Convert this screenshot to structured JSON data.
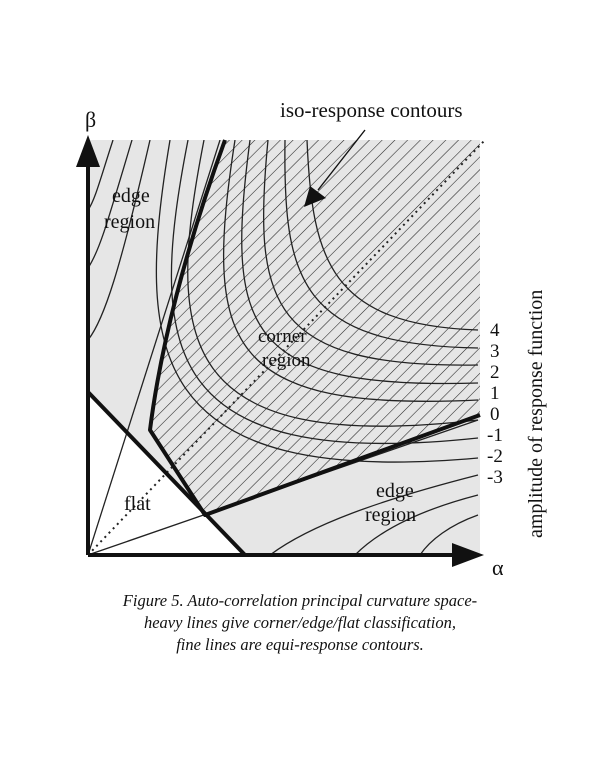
{
  "diagram": {
    "axis_x_label": "α",
    "axis_y_label": "β",
    "annotation": "iso-response contours",
    "side_label": "amplitude of response function",
    "region_labels": {
      "edge_top": [
        "edge",
        "region"
      ],
      "corner": [
        "corner",
        "region"
      ],
      "flat": "flat",
      "edge_right": [
        "edge",
        "region"
      ]
    },
    "contour_levels": [
      "4",
      "3",
      "2",
      "1",
      "0",
      "-1",
      "-2",
      "-3"
    ]
  },
  "caption": {
    "line1": "Figure 5.  Auto-correlation principal curvature space-",
    "line2": "heavy lines give corner/edge/flat classification,",
    "line3": "fine lines are equi-response contours."
  }
}
